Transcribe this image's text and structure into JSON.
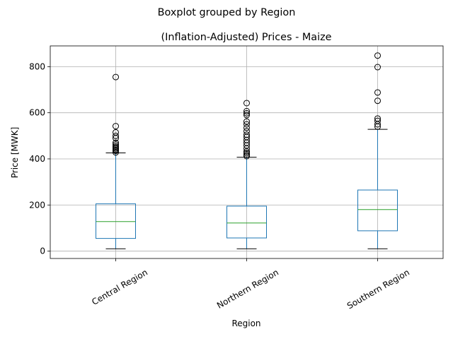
{
  "chart_data": {
    "type": "boxplot",
    "suptitle": "Boxplot grouped by Region",
    "title": "(Inflation-Adjusted) Prices - Maize",
    "xlabel": "Region",
    "ylabel": "Price [MWK]",
    "ylim": [
      -32,
      890
    ],
    "yticks": [
      0,
      200,
      400,
      600,
      800
    ],
    "grid": true,
    "colors": {
      "box": "#1f77b4",
      "median": "#2ca02c",
      "whisker_cap": "#000000",
      "grid": "#b0b0b0"
    },
    "categories": [
      "Central Region",
      "Northern Region",
      "Southern Region"
    ],
    "boxes": [
      {
        "label": "Central Region",
        "whisker_low": 10,
        "q1": 55,
        "median": 128,
        "q3": 205,
        "whisker_high": 426,
        "outliers": [
          755,
          542,
          515,
          500,
          490,
          470,
          462,
          455,
          450,
          445,
          440,
          435,
          428
        ]
      },
      {
        "label": "Northern Region",
        "whisker_low": 10,
        "q1": 57,
        "median": 122,
        "q3": 195,
        "whisker_high": 407,
        "outliers": [
          642,
          607,
          598,
          590,
          562,
          550,
          535,
          520,
          505,
          495,
          482,
          470,
          458,
          445,
          432,
          425,
          418,
          412
        ]
      },
      {
        "label": "Southern Region",
        "whisker_low": 10,
        "q1": 88,
        "median": 180,
        "q3": 265,
        "whisker_high": 528,
        "outliers": [
          848,
          798,
          688,
          652,
          575,
          565,
          550,
          540
        ]
      }
    ]
  }
}
